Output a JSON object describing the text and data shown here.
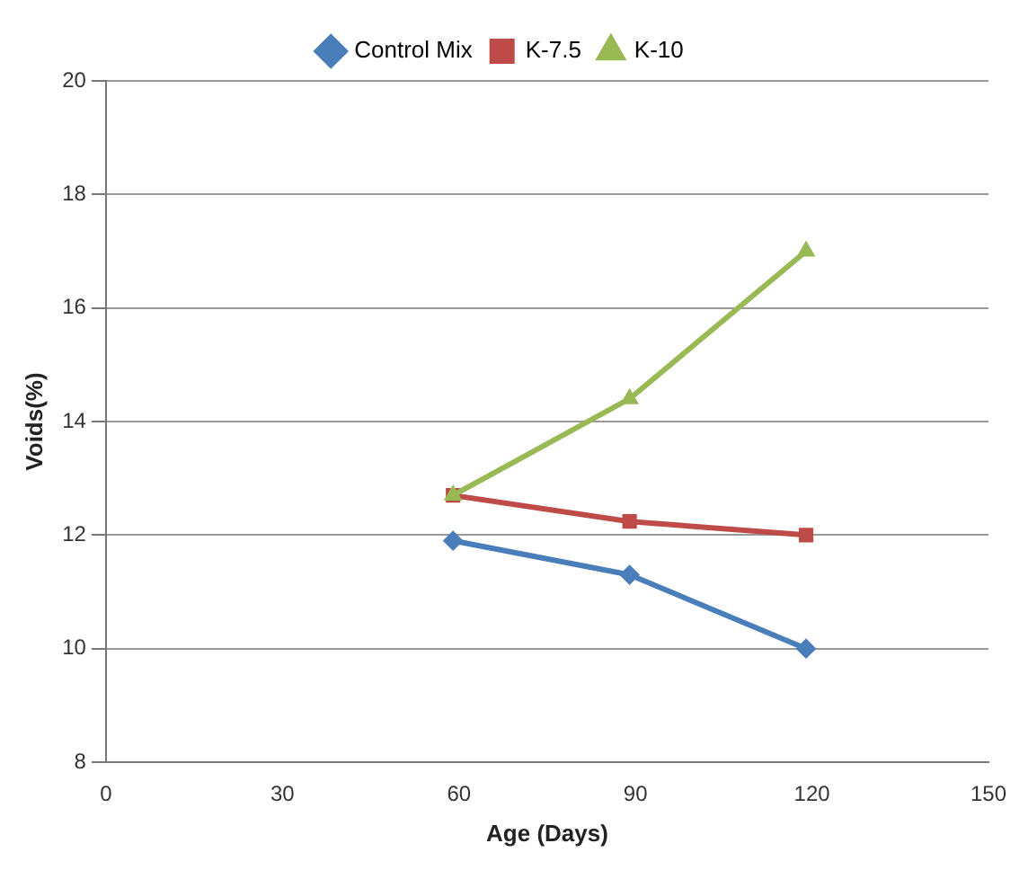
{
  "chart_data": {
    "type": "line",
    "xlabel": "Age (Days)",
    "ylabel": "Voids(%)",
    "x": [
      59,
      89,
      119
    ],
    "series": [
      {
        "name": "Control Mix",
        "color": "#4a7ebb",
        "marker": "diamond",
        "values": [
          11.9,
          11.3,
          10.0
        ]
      },
      {
        "name": "K-7.5",
        "color": "#be4b48",
        "marker": "square",
        "values": [
          12.7,
          12.24,
          12.0
        ]
      },
      {
        "name": "K-10",
        "color": "#98b954",
        "marker": "triangle",
        "values": [
          12.7,
          14.4,
          17.0
        ]
      }
    ],
    "xlim": [
      0,
      150
    ],
    "xticks": [
      0,
      30,
      60,
      90,
      120,
      150
    ],
    "ylim": [
      8,
      20
    ],
    "yticks": [
      8,
      10,
      12,
      14,
      16,
      18,
      20
    ],
    "grid": "y",
    "legend": "top",
    "line_style": "solid"
  }
}
